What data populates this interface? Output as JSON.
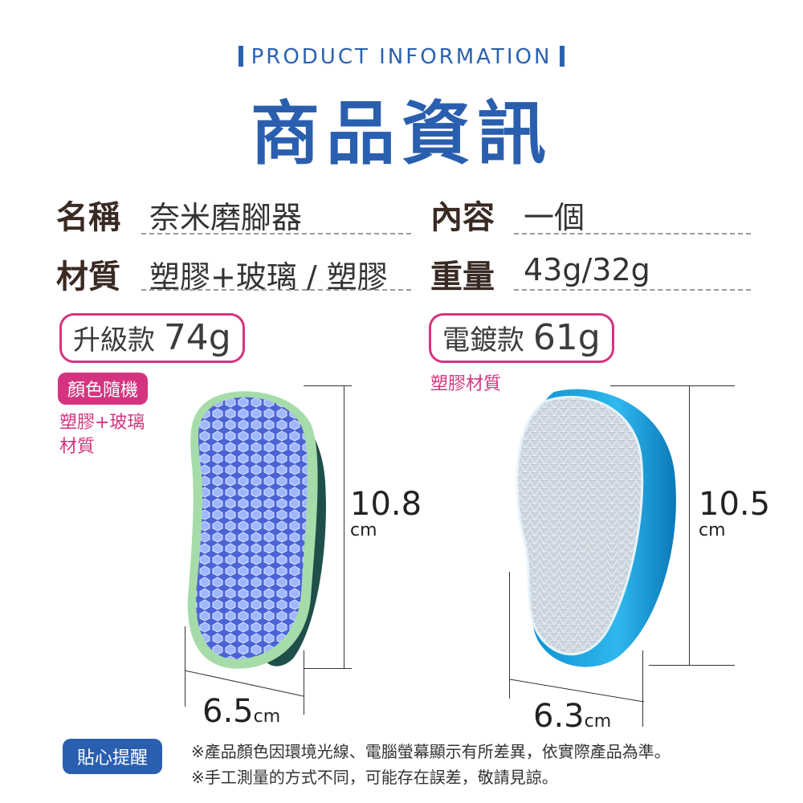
{
  "header": {
    "subtitle": "PRODUCT INFORMATION",
    "title": "商品資訊"
  },
  "info": {
    "name_label": "名稱",
    "name_value": "奈米磨腳器",
    "content_label": "內容",
    "content_value": "一個",
    "material_label": "材質",
    "material_value": "塑膠+玻璃 / 塑膠",
    "weight_label": "重量",
    "weight_value": "43g/32g"
  },
  "variants": [
    {
      "name": "升級款",
      "weight": "74g",
      "tag": "顏色隨機",
      "material_line1": "塑膠+玻璃",
      "material_line2": "材質",
      "height_value": "10.8",
      "height_unit": "cm",
      "width_value": "6.5",
      "width_unit": "cm",
      "colors": {
        "frame": "#a6dcaa",
        "body": "#1f4f4a",
        "pad": "#4a63d6",
        "hex": "#9fb7ff"
      }
    },
    {
      "name": "電鍍款",
      "weight": "61g",
      "material": "塑膠材質",
      "height_value": "10.5",
      "height_unit": "cm",
      "width_value": "6.3",
      "width_unit": "cm",
      "colors": {
        "frame": "#1aa6dc",
        "pad": "#c9d3dc"
      }
    }
  ],
  "notice": {
    "label": "貼心提醒",
    "line1": "※產品顏色因環境光線、電腦螢幕顯示有所差異，依實際產品為準。",
    "line2": "※手工測量的方式不同，可能存在誤差，敬請見諒。"
  },
  "colors": {
    "brand_blue": "#2a5fb0",
    "accent_pink": "#d4347f"
  }
}
